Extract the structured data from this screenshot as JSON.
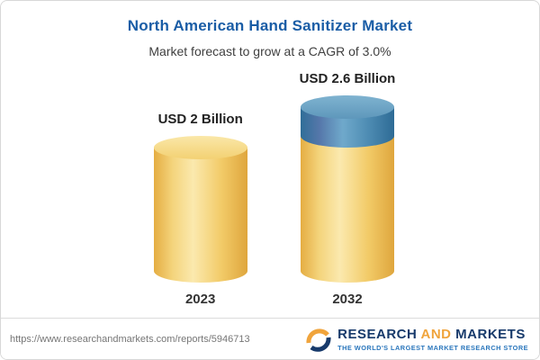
{
  "header": {
    "title": "North American Hand Sanitizer Market",
    "subtitle": "Market forecast to grow at a CAGR of 3.0%"
  },
  "chart_data": {
    "type": "bar",
    "categories": [
      "2023",
      "2032"
    ],
    "values": [
      2,
      2.6
    ],
    "value_labels": [
      "USD 2 Billion",
      "USD 2.6 Billion"
    ],
    "title": "North American Hand Sanitizer Market",
    "subtitle": "Market forecast to grow at a CAGR of 3.0%",
    "unit": "USD Billion",
    "cagr": "3.0%",
    "legend_position": "none",
    "grid": false,
    "colors": {
      "base_segment": "#f2cb68",
      "growth_segment": "#4e8cb3"
    }
  },
  "footer": {
    "url": "https://www.researchandmarkets.com/reports/5946713",
    "logo": {
      "research": "RESEARCH",
      "and": "AND",
      "markets": "MARKETS",
      "tagline": "THE WORLD'S LARGEST MARKET RESEARCH STORE"
    }
  }
}
